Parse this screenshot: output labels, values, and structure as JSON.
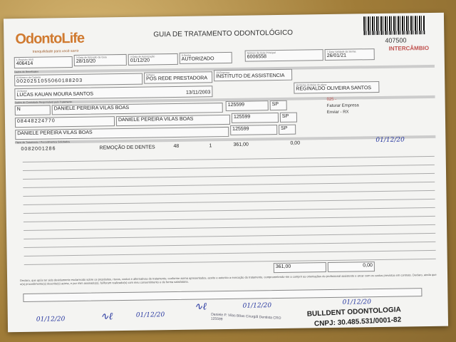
{
  "header": {
    "logo": "OdontoLife",
    "slogan": "tranquilidade para você sorrir",
    "title": "GUIA DE TRATAMENTO ODONTOLÓGICO",
    "guide_code": "407500",
    "guide_type": "INTERCÂMBIO"
  },
  "guide": {
    "registro_ans": {
      "label": "1-Registro ANS",
      "value": "406414"
    },
    "data_emissao": {
      "label": "3-Data de Emissão da Guia",
      "value": "28/10/20"
    },
    "data_autorizacao": {
      "label": "4-Data de Autorização",
      "value": "01/12/20"
    },
    "senha": {
      "label": "5-Senha",
      "value": "AUTORIZADO"
    },
    "guia_principal": {
      "label": "Número da Guia Principal",
      "value": "6006558"
    },
    "validade_senha": {
      "label": "7-Data Validade da Senha",
      "value": "26/01/21"
    }
  },
  "beneficiario": {
    "section": "Dados do Beneficiário",
    "carteira": {
      "label": "8-Número da Carteira",
      "value": "0020251055060188203"
    },
    "plano": {
      "label": "9-Plano",
      "value": "POS REDE PRESTADORA"
    },
    "empresa": {
      "label": "10-Empresa",
      "value": "INSTITUTO DE ASSISTENCIA"
    },
    "nome": {
      "label": "13-Nome",
      "value": "LUCAS KAUAN MOURA SANTOS"
    },
    "nascimento": "13/11/2003",
    "titular": {
      "label": "15-Nome do titular do plano",
      "value": "REGINALDO OLIVEIRA SANTOS"
    }
  },
  "contratado": {
    "section": "Dados do Contratado Responsável pelo Tratamento",
    "atendimento_rn": "N",
    "profissional_solicitante": "DANIELE PEREIRA VILAS BOAS",
    "cro1": "125599",
    "uf1": "SP",
    "codigo_operadora": "08448224770",
    "contratado_executante": "DANIELE PEREIRA VILAS BOAS",
    "cro2": "125599",
    "uf2": "SP",
    "profissional_executante": "DANIELE PEREIRA VILAS BOAS",
    "cro3": "125599",
    "uf3": "SP",
    "note1": "025 -",
    "note2": "Faturar Empresa",
    "note3": "Enviar - RX"
  },
  "procedimentos": {
    "section": "Plano de Tratamento / Procedimentos Solicitados",
    "items": [
      {
        "codigo": "0082001286",
        "descricao": "REMOÇÃO DE DENTES",
        "dente": "48",
        "qtd": "1",
        "qtd_us": "361,00",
        "valor": "0,00",
        "data": "01/12/20"
      }
    ],
    "total_us": "361,00",
    "valor_total": "0,00"
  },
  "declaracao": "Declaro, que após ter sido devidamente esclarecido sobre os propósitos, riscos, custos e alternativas de tratamento, conforme acima apresentados, aceito e autorizo a execução do tratamento, comprometendo-me a cumprir as orientações do profissional assistente e arcar com os custos previstos em contrato. Declaro, ainda que o(s) procedimento(s) descrito(s) acima, e por mim assinado(s), foi/foram realizado(s) com meu consentimento e de forma satisfatória.",
  "assinaturas": {
    "data1": "01/12/20",
    "data2": "01/12/20",
    "data3": "01/12/20",
    "data4": "01/12/20",
    "carimbo": "Daniele P. Vilas Bôas Cirurgiã Dentista CRO 125599"
  },
  "stamp": {
    "name": "BULLDENT ODONTOLOGIA",
    "cnpj": "CNPJ: 30.485.531/0001-82"
  }
}
